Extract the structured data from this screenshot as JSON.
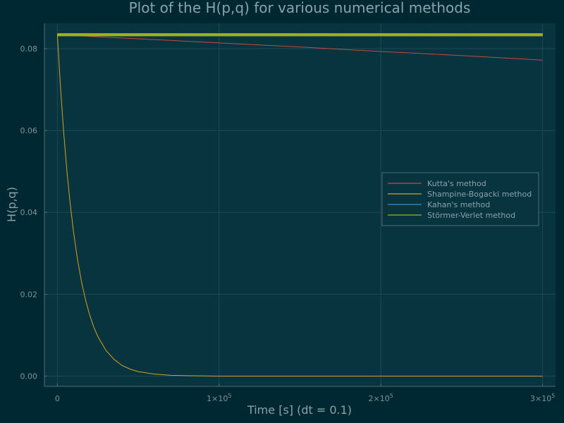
{
  "chart_data": {
    "type": "line",
    "title": "Plot of the H(p,q) for various numerical methods",
    "xlabel": "Time [s] (dt = 0.1)",
    "ylabel": "H(p,q)",
    "xlim": [
      -8000,
      308000
    ],
    "ylim": [
      -0.0025,
      0.0862
    ],
    "grid": true,
    "legend_position": "right",
    "x_ticks": [
      {
        "value": 0,
        "mantissa": "0",
        "exp": ""
      },
      {
        "value": 100000,
        "mantissa": "1×10",
        "exp": "5"
      },
      {
        "value": 200000,
        "mantissa": "2×10",
        "exp": "5"
      },
      {
        "value": 300000,
        "mantissa": "3×10",
        "exp": "5"
      }
    ],
    "y_ticks": [
      {
        "value": 0.0,
        "label": "0.00"
      },
      {
        "value": 0.02,
        "label": "0.02"
      },
      {
        "value": 0.04,
        "label": "0.04"
      },
      {
        "value": 0.06,
        "label": "0.06"
      },
      {
        "value": 0.08,
        "label": "0.08"
      }
    ],
    "series": [
      {
        "name": "Kutta's method",
        "color": "#c9473f",
        "x": [
          0,
          50000,
          100000,
          150000,
          200000,
          250000,
          300000
        ],
        "y": [
          0.0834,
          0.0824,
          0.0814,
          0.0804,
          0.0793,
          0.0783,
          0.0772
        ]
      },
      {
        "name": "Shampine-Bogacki method",
        "color": "#d6a21b",
        "x": [
          0,
          2000,
          4000,
          6000,
          8000,
          10000,
          12500,
          15000,
          17500,
          20000,
          22500,
          25000,
          30000,
          35000,
          40000,
          45000,
          50000,
          60000,
          70000,
          80000,
          100000,
          150000,
          200000,
          250000,
          300000
        ],
        "y": [
          0.0834,
          0.0702,
          0.0591,
          0.0497,
          0.0419,
          0.0352,
          0.0284,
          0.0229,
          0.0185,
          0.0149,
          0.012,
          0.0097,
          0.0063,
          0.0041,
          0.0026,
          0.0017,
          0.0011,
          0.0005,
          0.0002,
          0.0001,
          0.0,
          0.0,
          0.0,
          0.0,
          0.0
        ]
      },
      {
        "name": "Kahan's method",
        "color": "#3f8fc4",
        "x": [
          0,
          300000
        ],
        "y": [
          0.0834,
          0.0834
        ],
        "oscillation": 0.0002
      },
      {
        "name": "Störmer-Verlet method",
        "color": "#9bb320",
        "x": [
          0,
          300000
        ],
        "y": [
          0.0834,
          0.0834
        ],
        "oscillation": 0.0003
      }
    ]
  }
}
